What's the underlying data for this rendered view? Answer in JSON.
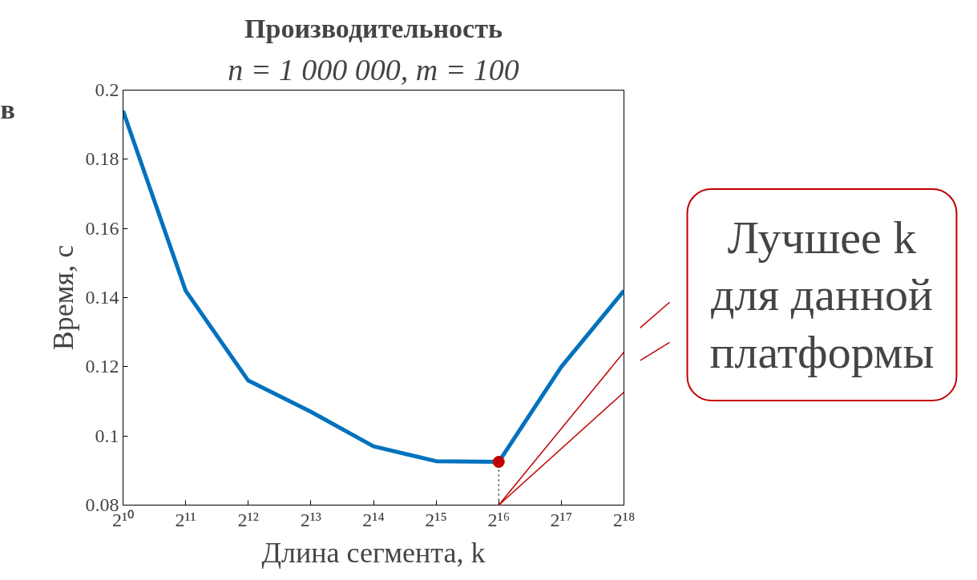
{
  "chart_data": {
    "type": "line",
    "title": "Производительность",
    "subtitle": "n = 1 000 000, m = 100",
    "xlabel": "Длина сегмента, k",
    "ylabel": "Время, с",
    "x": [
      1024,
      2048,
      4096,
      8192,
      16384,
      32768,
      65536,
      131072,
      262144
    ],
    "series": [
      {
        "color": "#0072bd",
        "values": [
          0.194,
          0.142,
          0.116,
          0.107,
          0.097,
          0.0927,
          0.0925,
          0.12,
          0.142
        ]
      },
      {
        "type": "scatter",
        "color": "#c00000",
        "marker": "circle",
        "values": [
          null,
          null,
          null,
          null,
          null,
          null,
          0.0925,
          null,
          null
        ],
        "errors": [
          null,
          null,
          null,
          null,
          null,
          null,
          [
            0.08,
            0.0925
          ],
          null,
          null
        ]
      }
    ],
    "log": "x",
    "xlim": [
      1024,
      262144
    ],
    "xticks": [
      {
        "value": 1024,
        "label": "2¹⁰"
      },
      {
        "value": 2048,
        "label": "2¹¹"
      },
      {
        "value": 4096,
        "label": "2¹²"
      },
      {
        "value": 8192,
        "label": "2¹³"
      },
      {
        "value": 16384,
        "label": "2¹⁴"
      },
      {
        "value": 32768,
        "label": "2¹⁵"
      },
      {
        "value": 65536,
        "label": "2¹⁶"
      },
      {
        "value": 131072,
        "label": "2¹⁷"
      },
      {
        "value": 262144,
        "label": "2¹⁸"
      }
    ],
    "ylim": [
      0.08,
      0.2
    ],
    "yticks": [
      0.08,
      0.1,
      0.12,
      0.14,
      0.16,
      0.18,
      0.2
    ],
    "grid": false,
    "annotations": [
      "в",
      "Лучшее k\nдля данной\nплатформы"
    ]
  }
}
